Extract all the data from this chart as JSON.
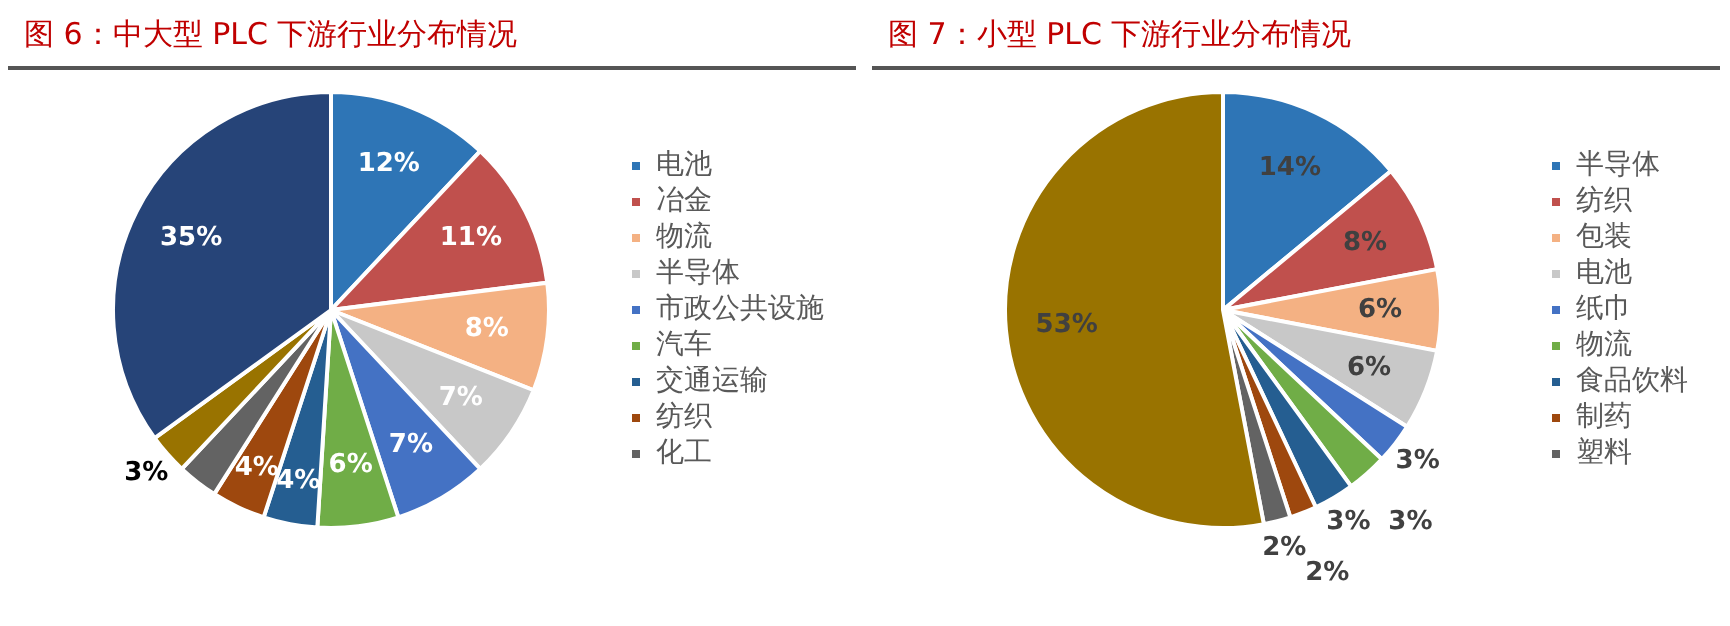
{
  "chart_data": [
    {
      "type": "pie",
      "title": "图 6：中大型 PLC 下游行业分布情况",
      "legend": "right",
      "categories": [
        "电池",
        "冶金",
        "物流",
        "半导体",
        "市政公共设施",
        "汽车",
        "交通运输",
        "纺织",
        "化工",
        null,
        null
      ],
      "values": [
        12,
        11,
        8,
        7,
        7,
        6,
        4,
        4,
        3,
        3,
        35
      ],
      "colors": [
        "#2e75b6",
        "#c0504d",
        "#f4b183",
        "#c8c8c8",
        "#4472c4",
        "#70ad47",
        "#255e91",
        "#9e480e",
        "#636363",
        "#997300",
        "#264478"
      ],
      "value_labels": [
        "12%",
        "11%",
        "8%",
        "7%",
        "7%",
        "6%",
        "4%",
        "4%",
        null,
        "3%",
        "35%"
      ]
    },
    {
      "type": "pie",
      "title": "图 7：小型 PLC 下游行业分布情况",
      "legend": "right",
      "categories": [
        "半导体",
        "纺织",
        "包装",
        "电池",
        "纸巾",
        "物流",
        "食品饮料",
        "制药",
        "塑料",
        null
      ],
      "values": [
        14,
        8,
        6,
        6,
        3,
        3,
        3,
        2,
        2,
        53
      ],
      "colors": [
        "#2e75b6",
        "#c0504d",
        "#f4b183",
        "#c8c8c8",
        "#4472c4",
        "#70ad47",
        "#255e91",
        "#9e480e",
        "#636363",
        "#997300"
      ],
      "value_labels": [
        "14%",
        "8%",
        "6%",
        "6%",
        "3%",
        "3%",
        "3%",
        "2%",
        "2%",
        "53%"
      ]
    }
  ]
}
